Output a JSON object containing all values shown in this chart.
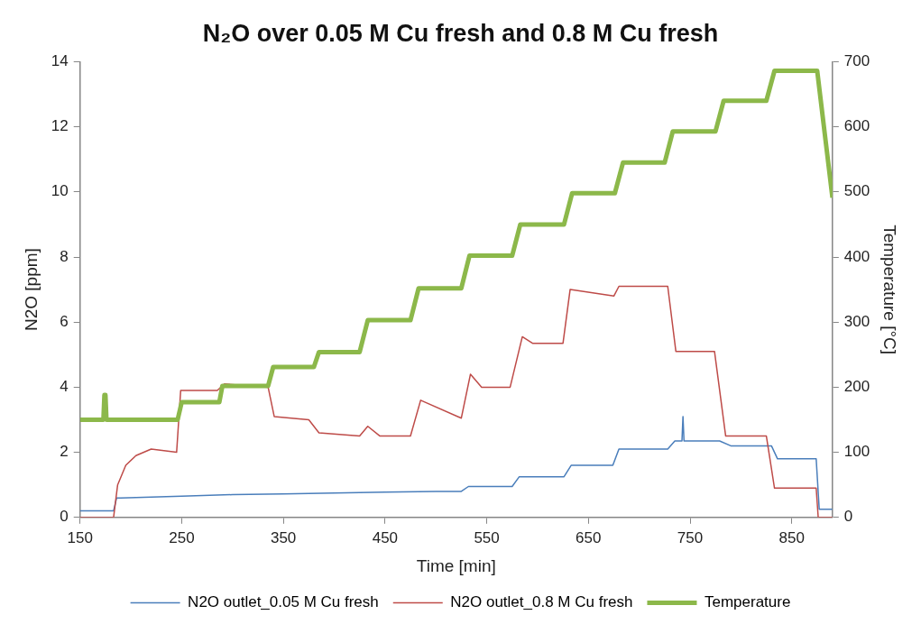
{
  "chart_data": {
    "type": "line",
    "title": "N₂O over 0.05 M Cu fresh and 0.8 M Cu fresh",
    "xlabel": "Time [min]",
    "ylabel": "N2O [ppm]",
    "y2label": "Temperature [°C]",
    "xlim": [
      150,
      890
    ],
    "xticks": [
      150,
      250,
      350,
      450,
      550,
      650,
      750,
      850
    ],
    "ylim": [
      0,
      14
    ],
    "yticks": [
      0,
      2,
      4,
      6,
      8,
      10,
      12,
      14
    ],
    "y2lim": [
      0,
      700
    ],
    "y2ticks": [
      0,
      100,
      200,
      300,
      400,
      500,
      600,
      700
    ],
    "grid": false,
    "legend": "bottom",
    "marker": "none",
    "line_style": "solid",
    "series": [
      {
        "name": "N2O outlet_0.05 M Cu fresh",
        "color": "#4a7ebb",
        "x": [
          150,
          183,
          186,
          190,
          250,
          300,
          350,
          400,
          450,
          500,
          525,
          532,
          575,
          582,
          626,
          633,
          674,
          680,
          728,
          735,
          742,
          743,
          744,
          779,
          790,
          830,
          836,
          874,
          877,
          890
        ],
        "values": [
          0.2,
          0.2,
          0.6,
          0.6,
          0.65,
          0.7,
          0.72,
          0.75,
          0.78,
          0.8,
          0.8,
          0.95,
          0.95,
          1.25,
          1.25,
          1.6,
          1.6,
          2.1,
          2.1,
          2.35,
          2.35,
          3.1,
          2.35,
          2.35,
          2.2,
          2.2,
          1.8,
          1.8,
          0.25,
          0.25
        ]
      },
      {
        "name": "N2O outlet_0.8 M Cu fresh",
        "color": "#be4b48",
        "x": [
          150,
          183,
          187,
          195,
          205,
          220,
          245,
          249,
          285,
          292,
          335,
          341,
          375,
          385,
          425,
          433,
          445,
          475,
          485,
          525,
          534,
          545,
          573,
          585,
          595,
          625,
          632,
          675,
          680,
          728,
          736,
          774,
          785,
          825,
          833,
          874,
          876,
          890
        ],
        "values": [
          0,
          0,
          1.0,
          1.6,
          1.9,
          2.1,
          2.0,
          3.9,
          3.9,
          4.1,
          4.0,
          3.1,
          3.0,
          2.6,
          2.5,
          2.8,
          2.5,
          2.5,
          3.6,
          3.05,
          4.4,
          4.0,
          4.0,
          5.55,
          5.35,
          5.35,
          7.0,
          6.8,
          7.1,
          7.1,
          5.1,
          5.1,
          2.5,
          2.5,
          0.9,
          0.9,
          0,
          0
        ]
      },
      {
        "name": "Temperature",
        "color": "#8cb84a",
        "axis": "y2",
        "x": [
          150,
          173,
          174,
          175,
          176,
          246,
          250,
          287,
          290,
          335,
          340,
          380,
          385,
          425,
          433,
          475,
          483,
          525,
          533,
          575,
          583,
          626,
          634,
          676,
          684,
          725,
          733,
          775,
          783,
          825,
          833,
          875,
          890
        ],
        "values": [
          150,
          150,
          188,
          188,
          150,
          150,
          177,
          177,
          202,
          202,
          231,
          231,
          254,
          254,
          303,
          303,
          352,
          352,
          402,
          402,
          450,
          450,
          498,
          498,
          545,
          545,
          593,
          593,
          640,
          640,
          686,
          686,
          491
        ]
      }
    ]
  }
}
